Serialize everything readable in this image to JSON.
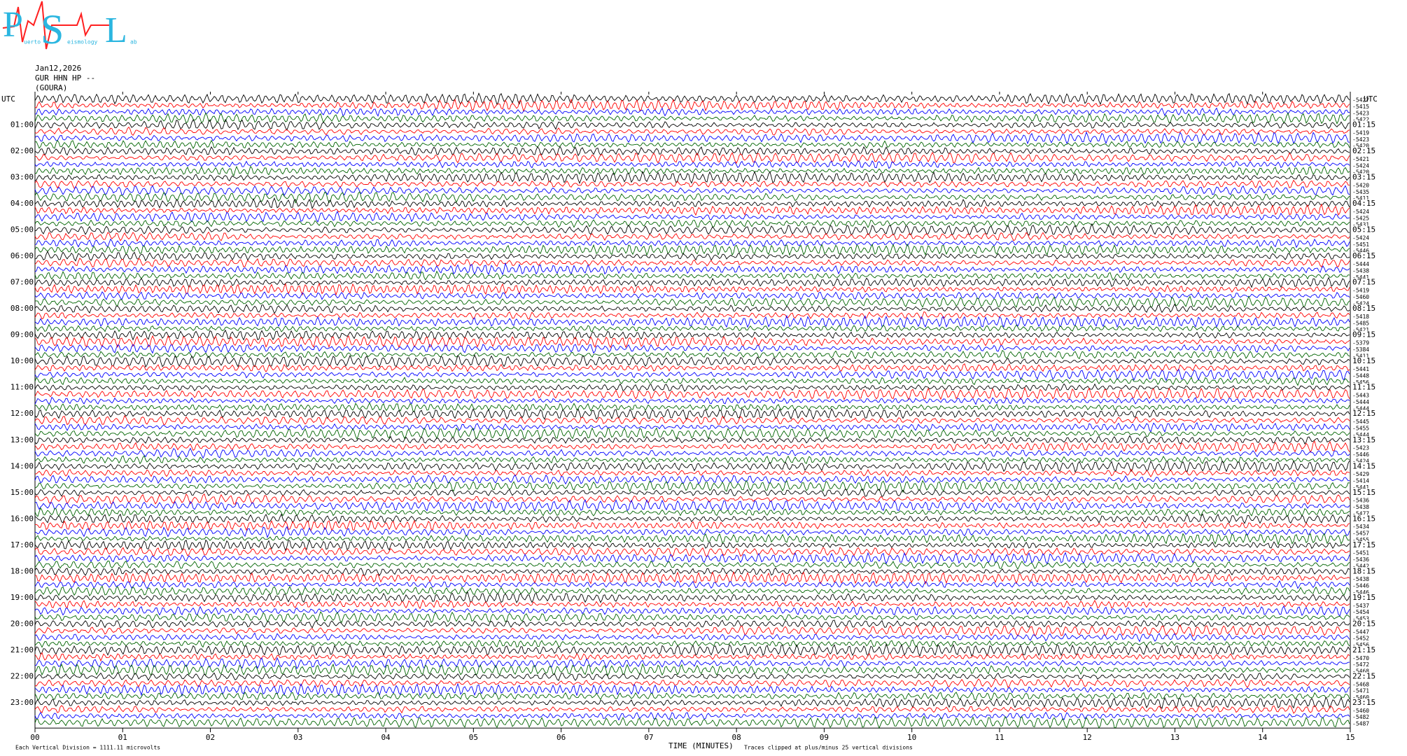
{
  "chart_data": {
    "type": "helicorder",
    "logo": {
      "letters": [
        "P",
        "S",
        "L"
      ],
      "small": [
        "uerto",
        "eismology",
        "ab"
      ]
    },
    "header": [
      "Jan12,2026",
      "GUR HHN HP --",
      "(GOURA)"
    ],
    "left_title": "UTC",
    "right_title": "UTC",
    "left_labels": [
      "01:00",
      "02:00",
      "03:00",
      "04:00",
      "05:00",
      "06:00",
      "07:00",
      "08:00",
      "09:00",
      "10:00",
      "11:00",
      "12:00",
      "13:00",
      "14:00",
      "15:00",
      "16:00",
      "17:00",
      "18:00",
      "19:00",
      "20:00",
      "21:00",
      "22:00",
      "23:00"
    ],
    "right_labels": [
      "01:15",
      "02:15",
      "03:15",
      "04:15",
      "05:15",
      "06:15",
      "07:15",
      "08:15",
      "09:15",
      "10:15",
      "11:15",
      "12:15",
      "13:15",
      "14:15",
      "15:15",
      "16:15",
      "17:15",
      "18:15",
      "19:15",
      "20:15",
      "21:15",
      "22:15",
      "23:15"
    ],
    "trace_offsets": [
      -5427,
      -5415,
      -5423,
      -5422,
      -5426,
      -5419,
      -5423,
      -5420,
      -5421,
      -5421,
      -5424,
      -5420,
      -5421,
      -5420,
      -5435,
      -5411,
      -5425,
      -5424,
      -5425,
      -5431,
      -5430,
      -5424,
      -5451,
      -5446,
      -5423,
      -5444,
      -5438,
      -5441,
      -5441,
      -5419,
      -5460,
      -5424,
      -5460,
      -5418,
      -5485,
      -5421,
      -5404,
      -5379,
      -5384,
      -5411,
      -5431,
      -5441,
      -5448,
      -5456,
      -5456,
      -5443,
      -5444,
      -5444,
      -5463,
      -5445,
      -5455,
      -5444,
      -5424,
      -5423,
      -5446,
      -5424,
      -5422,
      -5429,
      -5414,
      -5441,
      -5389,
      -5436,
      -5438,
      -5477,
      -5423,
      -5434,
      -5457,
      -5455,
      -5458,
      -5451,
      -5436,
      -5442,
      -5466,
      -5438,
      -5446,
      -5446,
      -5417,
      -5437,
      -5454,
      -5453,
      -5445,
      -5447,
      -5452,
      -5456,
      -5454,
      -5470,
      -5472,
      -5468,
      -5460,
      -5468,
      -5471,
      -5460,
      -5471,
      -5460,
      -5482,
      -5487
    ],
    "trace_colors": [
      "#000000",
      "#ff0000",
      "#0000ff",
      "#006400"
    ],
    "xlim": [
      0,
      15
    ],
    "xticks": [
      {
        "value": 0,
        "label": "00"
      },
      {
        "value": 1,
        "label": "01"
      },
      {
        "value": 2,
        "label": "02"
      },
      {
        "value": 3,
        "label": "03"
      },
      {
        "value": 4,
        "label": "04"
      },
      {
        "value": 5,
        "label": "05"
      },
      {
        "value": 6,
        "label": "06"
      },
      {
        "value": 7,
        "label": "07"
      },
      {
        "value": 8,
        "label": "08"
      },
      {
        "value": 9,
        "label": "09"
      },
      {
        "value": 10,
        "label": "10"
      },
      {
        "value": 11,
        "label": "11"
      },
      {
        "value": 12,
        "label": "12"
      },
      {
        "value": 13,
        "label": "13"
      },
      {
        "value": 14,
        "label": "14"
      },
      {
        "value": 15,
        "label": "15"
      }
    ],
    "scale_note": "Each Vertical Division = 1111.11 microvolts",
    "xlabel": "TIME (MINUTES)",
    "clip_note": "Traces clipped at plus/minus 25 vertical divisions"
  }
}
